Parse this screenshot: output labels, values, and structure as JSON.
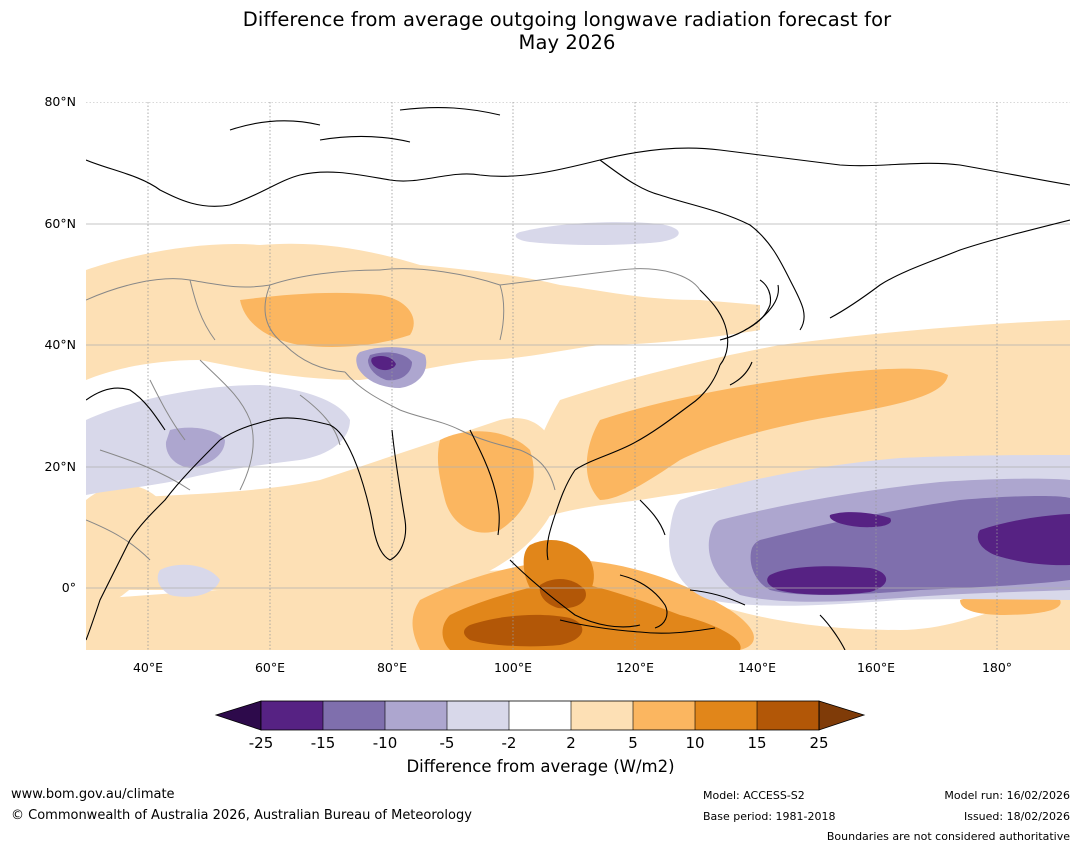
{
  "title": {
    "line1": "Difference from average outgoing longwave radiation forecast for",
    "line2": "May 2026"
  },
  "map": {
    "lat_labels": [
      "80°N",
      "60°N",
      "40°N",
      "20°N",
      "0°"
    ],
    "lon_labels": [
      "40°E",
      "60°E",
      "80°E",
      "100°E",
      "120°E",
      "140°E",
      "160°E",
      "180°"
    ],
    "lat_values": [
      80,
      60,
      40,
      20,
      0
    ],
    "lon_values": [
      40,
      60,
      80,
      100,
      120,
      140,
      160,
      180
    ],
    "lon_range": [
      30,
      190
    ],
    "lat_range": [
      -10,
      80
    ],
    "colors": {
      "strong_neg": "#562283",
      "mid_neg": "#7f6fad",
      "light_neg": "#ada6cf",
      "pale_neg": "#d8d8ea",
      "pale_pos": "#fde0b5",
      "light_pos": "#fbb660",
      "mid_pos": "#e1861a",
      "strong_pos": "#b25707",
      "coast": "#000000",
      "border": "#888888",
      "grid": "#999999"
    }
  },
  "colorbar": {
    "ticks": [
      "-25",
      "-15",
      "-10",
      "-5",
      "-2",
      "2",
      "5",
      "10",
      "15",
      "25"
    ],
    "colors": [
      "#562283",
      "#7f6fad",
      "#ada6cf",
      "#d8d8ea",
      "#ffffff",
      "#fde0b5",
      "#fbb660",
      "#e1861a",
      "#b25707"
    ],
    "under_color": "#2d0a4b",
    "over_color": "#7f3b08",
    "label": "Difference from average (W/m2)"
  },
  "footer": {
    "website": "www.bom.gov.au/climate",
    "copyright": "© Commonwealth of Australia 2026, Australian Bureau of Meteorology",
    "model": "Model: ACCESS-S2",
    "base_period": "Base period: 1981-2018",
    "model_run": "Model run: 16/02/2026",
    "issued": "Issued: 18/02/2026",
    "disclaimer": "Boundaries are not considered authoritative"
  }
}
